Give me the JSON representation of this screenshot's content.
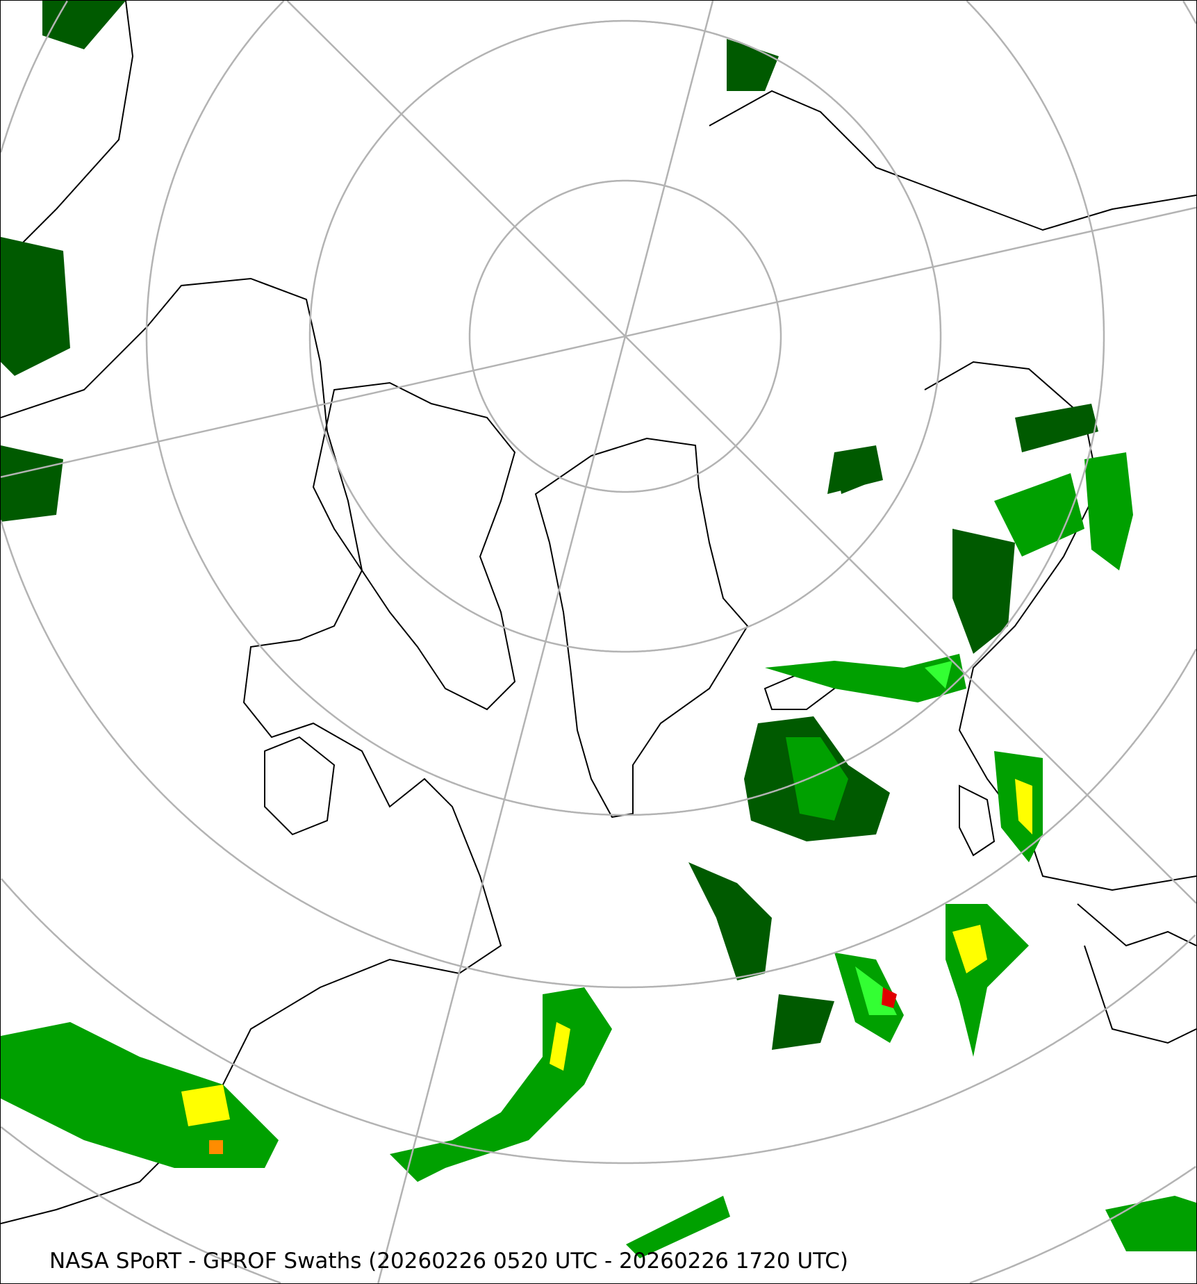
{
  "map": {
    "caption": "NASA SPoRT - GPROF Swaths (20260226 0520 UTC - 20260226 1720 UTC)",
    "projection": "north-polar-stereographic",
    "colors": {
      "graticule": "#b3b3b3",
      "coastline": "#000000",
      "precip_light": "#005a00",
      "precip_moderate": "#00a000",
      "precip_heavy": "#33ff33",
      "precip_very_heavy": "#ffff00",
      "precip_intense": "#ff8c00",
      "precip_extreme": "#e00000"
    }
  }
}
